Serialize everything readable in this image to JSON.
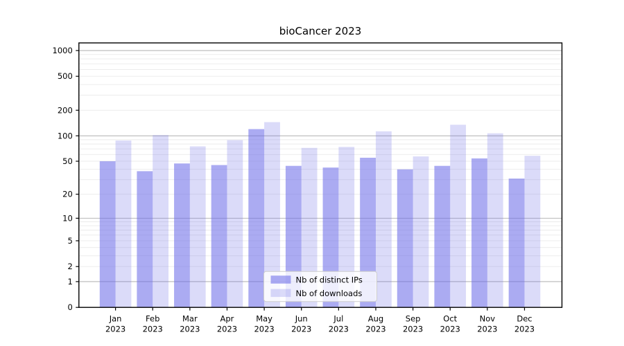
{
  "figure": {
    "background": "#ffffff"
  },
  "chart_data": {
    "type": "bar",
    "title": "bioCancer 2023",
    "x": {
      "months": [
        "Jan",
        "Feb",
        "Mar",
        "Apr",
        "May",
        "Jun",
        "Jul",
        "Aug",
        "Sep",
        "Oct",
        "Nov",
        "Dec"
      ],
      "year": "2023"
    },
    "series": [
      {
        "name": "Nb of distinct IPs",
        "color": "rgba(105,105,232,0.56)",
        "values": [
          50,
          38,
          47,
          45,
          120,
          44,
          42,
          55,
          40,
          44,
          54,
          31
        ]
      },
      {
        "name": "Nb of downloads",
        "color": "rgba(105,105,232,0.24)",
        "values": [
          88,
          102,
          75,
          89,
          145,
          72,
          74,
          113,
          57,
          135,
          107,
          58
        ]
      }
    ],
    "y_axis": {
      "scale": "log1p",
      "tick_labels": [
        1000,
        500,
        200,
        100,
        50,
        20,
        10,
        5,
        2,
        1,
        0
      ],
      "major_gridlines": [
        1,
        10,
        100,
        1000
      ],
      "minor_gridlines": [
        2,
        3,
        4,
        5,
        6,
        7,
        8,
        9,
        20,
        30,
        40,
        50,
        60,
        70,
        80,
        90,
        200,
        300,
        400,
        500,
        600,
        700,
        800,
        900
      ],
      "ylim": [
        0,
        1230
      ]
    },
    "legend": {
      "position": "lower-center"
    },
    "colors": {
      "grid_major": "#b7b7b7",
      "grid_minor": "#eaeaea",
      "spine": "#000000",
      "tick": "#000000",
      "legend_bg": "rgba(255,255,255,0.8)",
      "legend_border": "#cccccc"
    }
  }
}
